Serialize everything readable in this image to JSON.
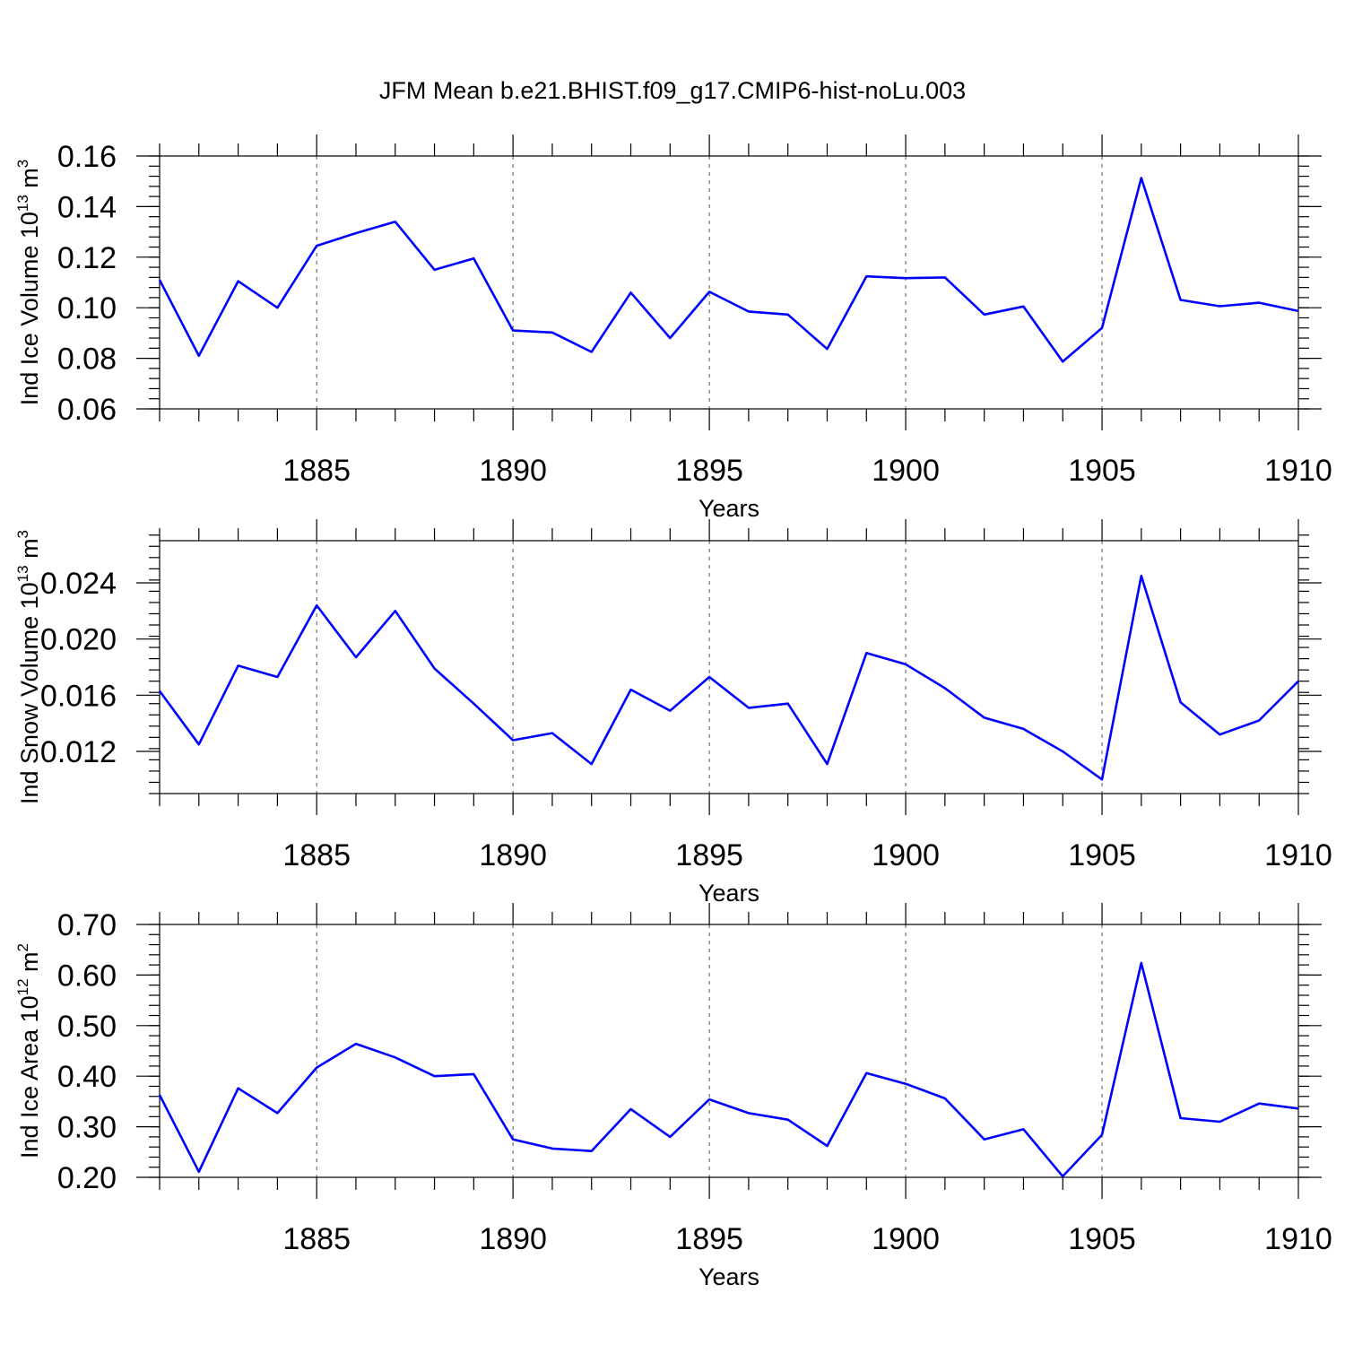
{
  "title": "JFM Mean b.e21.BHIST.f09_g17.CMIP6-hist-noLu.003",
  "line_color": "#0000ff",
  "chart_data": [
    {
      "type": "line",
      "ylabel": "Ind Ice Volume 10^13 m^3",
      "ylabel_parts": {
        "main": "Ind Ice Volume 10",
        "exp": "13",
        "unit": " m",
        "unit_exp": "3"
      },
      "xlabel": "Years",
      "xlim": [
        1881,
        1910
      ],
      "ylim": [
        0.06,
        0.16
      ],
      "yticks": [
        0.06,
        0.08,
        0.1,
        0.12,
        0.14,
        0.16
      ],
      "ytick_labels": [
        "0.06",
        "0.08",
        "0.10",
        "0.12",
        "0.14",
        "0.16"
      ],
      "yminor_step": 0.004,
      "xticks": [
        1885,
        1890,
        1895,
        1900,
        1905,
        1910
      ],
      "xtick_labels": [
        "1885",
        "1890",
        "1895",
        "1900",
        "1905",
        "1910"
      ],
      "grid": "vertical dashed at major x ticks",
      "x": [
        1881,
        1882,
        1883,
        1884,
        1885,
        1886,
        1887,
        1888,
        1889,
        1890,
        1891,
        1892,
        1893,
        1894,
        1895,
        1896,
        1897,
        1898,
        1899,
        1900,
        1901,
        1902,
        1903,
        1904,
        1905,
        1906,
        1907,
        1908,
        1909,
        1910
      ],
      "y": [
        0.111,
        0.081,
        0.1105,
        0.1,
        0.1245,
        0.1295,
        0.134,
        0.115,
        0.1195,
        0.091,
        0.0902,
        0.0825,
        0.106,
        0.088,
        0.1063,
        0.0985,
        0.0973,
        0.0837,
        0.1124,
        0.1117,
        0.112,
        0.0973,
        0.1005,
        0.0787,
        0.092,
        0.1513,
        0.1031,
        0.1006,
        0.102,
        0.0987
      ]
    },
    {
      "type": "line",
      "ylabel": "Ind Snow Volume 10^13 m^3",
      "ylabel_parts": {
        "main": "Ind Snow Volume 10",
        "exp": "13",
        "unit": " m",
        "unit_exp": "3"
      },
      "xlabel": "Years",
      "xlim": [
        1881,
        1910
      ],
      "ylim": [
        0.009,
        0.027
      ],
      "yticks": [
        0.012,
        0.016,
        0.02,
        0.024
      ],
      "ytick_labels": [
        "0.012",
        "0.016",
        "0.020",
        "0.024"
      ],
      "yminor_step": 0.0008,
      "xticks": [
        1885,
        1890,
        1895,
        1900,
        1905,
        1910
      ],
      "xtick_labels": [
        "1885",
        "1890",
        "1895",
        "1900",
        "1905",
        "1910"
      ],
      "grid": "vertical dashed at major x ticks",
      "x": [
        1881,
        1882,
        1883,
        1884,
        1885,
        1886,
        1887,
        1888,
        1889,
        1890,
        1891,
        1892,
        1893,
        1894,
        1895,
        1896,
        1897,
        1898,
        1899,
        1900,
        1901,
        1902,
        1903,
        1904,
        1905,
        1906,
        1907,
        1908,
        1909,
        1910
      ],
      "y": [
        0.0163,
        0.0125,
        0.0181,
        0.0173,
        0.0224,
        0.0187,
        0.022,
        0.0179,
        0.0154,
        0.0128,
        0.0133,
        0.0111,
        0.0164,
        0.0149,
        0.0173,
        0.0151,
        0.0154,
        0.0111,
        0.019,
        0.0182,
        0.0165,
        0.0144,
        0.0136,
        0.012,
        0.01,
        0.0245,
        0.0155,
        0.0132,
        0.0142,
        0.017
      ]
    },
    {
      "type": "line",
      "ylabel": "Ind Ice Area 10^12 m^2",
      "ylabel_parts": {
        "main": "Ind Ice Area 10",
        "exp": "12",
        "unit": " m",
        "unit_exp": "2"
      },
      "xlabel": "Years",
      "xlim": [
        1881,
        1910
      ],
      "ylim": [
        0.2,
        0.7
      ],
      "yticks": [
        0.2,
        0.3,
        0.4,
        0.5,
        0.6,
        0.7
      ],
      "ytick_labels": [
        "0.20",
        "0.30",
        "0.40",
        "0.50",
        "0.60",
        "0.70"
      ],
      "yminor_step": 0.02,
      "xticks": [
        1885,
        1890,
        1895,
        1900,
        1905,
        1910
      ],
      "xtick_labels": [
        "1885",
        "1890",
        "1895",
        "1900",
        "1905",
        "1910"
      ],
      "grid": "vertical dashed at major x ticks",
      "x": [
        1881,
        1882,
        1883,
        1884,
        1885,
        1886,
        1887,
        1888,
        1889,
        1890,
        1891,
        1892,
        1893,
        1894,
        1895,
        1896,
        1897,
        1898,
        1899,
        1900,
        1901,
        1902,
        1903,
        1904,
        1905,
        1906,
        1907,
        1908,
        1909,
        1910
      ],
      "y": [
        0.363,
        0.211,
        0.376,
        0.327,
        0.417,
        0.464,
        0.437,
        0.4,
        0.404,
        0.275,
        0.257,
        0.252,
        0.335,
        0.28,
        0.354,
        0.327,
        0.314,
        0.262,
        0.406,
        0.385,
        0.356,
        0.275,
        0.295,
        0.202,
        0.284,
        0.624,
        0.317,
        0.31,
        0.346,
        0.336
      ]
    }
  ]
}
